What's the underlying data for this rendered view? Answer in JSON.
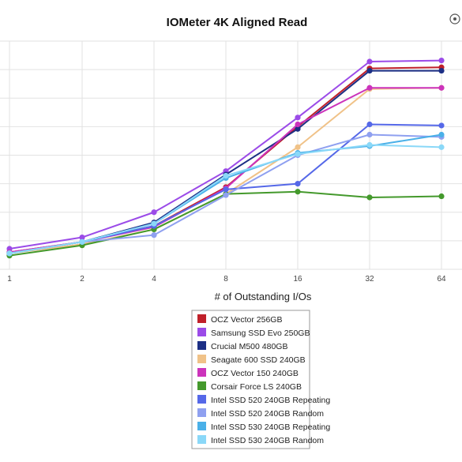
{
  "chart_data": {
    "type": "line",
    "title": "IOMeter 4K Aligned Read",
    "xlabel": "# of Outstanding I/Os",
    "ylabel": "",
    "categories": [
      "1",
      "2",
      "4",
      "8",
      "16",
      "32",
      "64"
    ],
    "ylim": [
      0,
      100
    ],
    "grid": true,
    "legend_position": "bottom",
    "series": [
      {
        "name": "OCZ Vector 256GB",
        "color": "#c0202a",
        "values": [
          7.5,
          12,
          19,
          36,
          62.5,
          88,
          88.5
        ]
      },
      {
        "name": "Samsung SSD Evo 250GB",
        "color": "#9b4be8",
        "values": [
          9,
          14,
          25,
          43,
          66.5,
          91,
          91.5
        ]
      },
      {
        "name": "Crucial M500 480GB",
        "color": "#1c2f85",
        "values": [
          7,
          12,
          20.5,
          41.5,
          61.5,
          87,
          87
        ]
      },
      {
        "name": "Seagate 600 SSD 240GB",
        "color": "#f0c288",
        "values": [
          7,
          11,
          17.5,
          33,
          53.5,
          79,
          79.5
        ]
      },
      {
        "name": "OCZ Vector 150 240GB",
        "color": "#cc33bb",
        "values": [
          7.5,
          12,
          18.5,
          35.5,
          63.5,
          79.5,
          79.5
        ]
      },
      {
        "name": "Corsair Force LS 240GB",
        "color": "#44992c",
        "values": [
          6,
          10.5,
          17.5,
          33,
          34,
          31.5,
          32
        ]
      },
      {
        "name": "Intel SSD 520 240GB Repeating",
        "color": "#5568e8",
        "values": [
          7,
          12,
          19,
          35,
          37.5,
          63.5,
          63
        ]
      },
      {
        "name": "Intel SSD 520 240GB Random",
        "color": "#8fa0f0",
        "values": [
          7,
          12,
          15,
          32.5,
          50,
          59,
          58
        ]
      },
      {
        "name": "Intel SSD 530 240GB Repeating",
        "color": "#4ab0e8",
        "values": [
          7,
          12,
          20,
          40,
          51,
          54,
          59
        ]
      },
      {
        "name": "Intel SSD 530 240GB Random",
        "color": "#8ad8f8",
        "values": [
          7,
          12,
          20,
          41,
          50.5,
          54.5,
          53.5
        ]
      }
    ]
  }
}
